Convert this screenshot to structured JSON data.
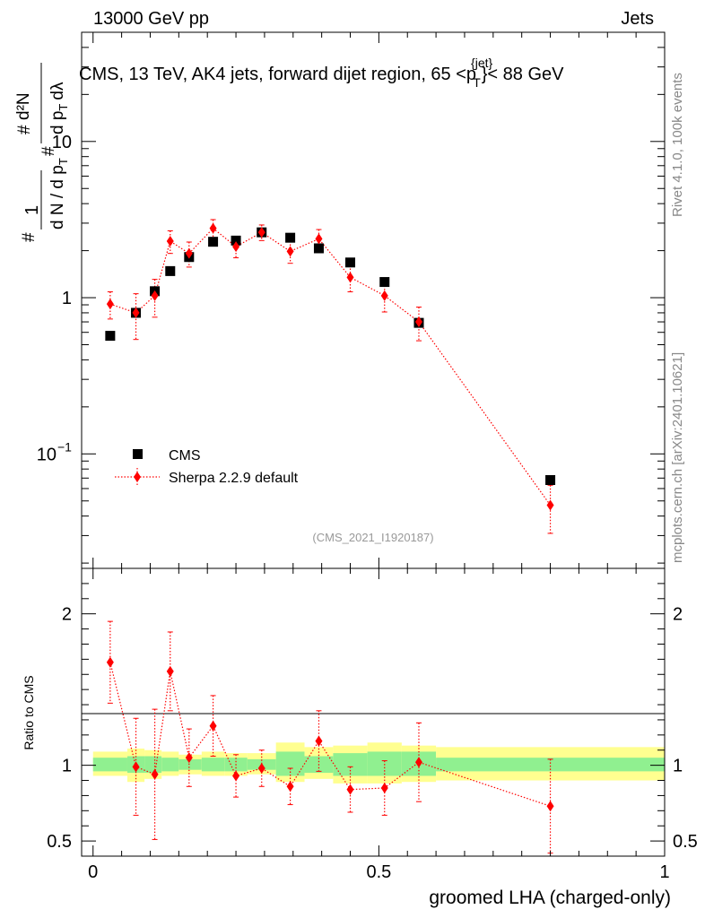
{
  "header": {
    "left": "13000 GeV pp",
    "right": "Jets"
  },
  "side_labels": {
    "rivet": "Rivet 4.1.0,  100k events",
    "mcplots": "mcplots.cern.ch [arXiv:2401.10621]"
  },
  "chart_data": {
    "type": "scatter",
    "title_parts": {
      "prefix": "CMS, 13 TeV, AK4 jets, forward dijet region, 65 <p",
      "sup": "{jet}",
      "sub": "T",
      "suffix": "}< 88 GeV"
    },
    "analysis_id": "(CMS_2021_I1920187)",
    "xlabel": "groomed LHA (charged-only)",
    "xlim": [
      -0.02,
      1.0
    ],
    "ylabel_main": {
      "hash": "#",
      "one": "1",
      "den": "d N / d p",
      "den_sub": "T",
      "num_hash": "#",
      "num_d2N": "d²N",
      "num_den": "d p",
      "num_sub": "T",
      "num_dlambda": "dλ"
    },
    "ylabel_ratio": "Ratio to CMS",
    "main_yscale": "log",
    "main_ylim": [
      0.0185,
      50
    ],
    "ratio_ylim": [
      0.4,
      2.3
    ],
    "x_ticks": [
      {
        "value": 0,
        "label": "0"
      },
      {
        "value": 0.5,
        "label": "0.5"
      },
      {
        "value": 1,
        "label": "1"
      }
    ],
    "main_y_ticks": [
      {
        "value": 10,
        "label": "10",
        "base": "",
        "exp": ""
      },
      {
        "value": 1,
        "label": "1",
        "base": "",
        "exp": ""
      },
      {
        "value": 0.1,
        "label": "",
        "base": "10",
        "exp": "−1"
      }
    ],
    "ratio_y_ticks": [
      {
        "value": 2,
        "label": "2"
      },
      {
        "value": 1,
        "label": "1"
      },
      {
        "value": 0.5,
        "label": "0.5"
      }
    ],
    "legend": {
      "position": "lower-left",
      "entries": [
        {
          "name": "CMS",
          "marker": "square",
          "color": "#000000"
        },
        {
          "name": "Sherpa 2.2.9 default",
          "marker": "diamond",
          "color": "#ff0000"
        }
      ]
    },
    "colors": {
      "data": "#000000",
      "mc": "#ff0000",
      "band_stat": "#90f090",
      "band_total": "#ffff90",
      "side_text": "#888888",
      "analysis_id": "#999999"
    },
    "series": [
      {
        "name": "CMS",
        "x": [
          0.03,
          0.075,
          0.108,
          0.135,
          0.168,
          0.21,
          0.25,
          0.295,
          0.345,
          0.395,
          0.45,
          0.51,
          0.57,
          0.8
        ],
        "y": [
          0.57,
          0.8,
          1.1,
          1.48,
          1.82,
          2.28,
          2.32,
          2.62,
          2.42,
          2.07,
          1.68,
          1.26,
          0.69,
          0.068
        ],
        "band_edges": [
          0.0,
          0.06,
          0.09,
          0.12,
          0.15,
          0.19,
          0.23,
          0.27,
          0.32,
          0.37,
          0.42,
          0.48,
          0.54,
          0.6,
          1.0
        ],
        "band_stat": [
          [
            0.96,
            1.05
          ],
          [
            0.95,
            1.06
          ],
          [
            0.95,
            1.06
          ],
          [
            0.96,
            1.05
          ],
          [
            0.97,
            1.04
          ],
          [
            0.96,
            1.05
          ],
          [
            0.96,
            1.05
          ],
          [
            0.97,
            1.04
          ],
          [
            0.93,
            1.09
          ],
          [
            0.95,
            1.06
          ],
          [
            0.93,
            1.08
          ],
          [
            0.93,
            1.09
          ],
          [
            0.93,
            1.09
          ],
          [
            0.96,
            1.05
          ]
        ],
        "band_total": [
          [
            0.93,
            1.09
          ],
          [
            0.89,
            1.11
          ],
          [
            0.91,
            1.1
          ],
          [
            0.93,
            1.09
          ],
          [
            0.94,
            1.07
          ],
          [
            0.93,
            1.09
          ],
          [
            0.93,
            1.08
          ],
          [
            0.94,
            1.08
          ],
          [
            0.89,
            1.15
          ],
          [
            0.91,
            1.12
          ],
          [
            0.88,
            1.13
          ],
          [
            0.88,
            1.15
          ],
          [
            0.89,
            1.13
          ],
          [
            0.9,
            1.12
          ]
        ]
      },
      {
        "name": "Sherpa 2.2.9 default",
        "x": [
          0.03,
          0.075,
          0.108,
          0.135,
          0.168,
          0.21,
          0.25,
          0.295,
          0.345,
          0.395,
          0.45,
          0.51,
          0.57,
          0.8
        ],
        "y": [
          0.91,
          0.8,
          1.03,
          2.3,
          1.92,
          2.78,
          2.12,
          2.62,
          1.98,
          2.38,
          1.35,
          1.03,
          0.7,
          0.047
        ],
        "yerr": [
          0.18,
          0.26,
          0.28,
          0.38,
          0.35,
          0.38,
          0.32,
          0.3,
          0.32,
          0.35,
          0.26,
          0.22,
          0.17,
          0.016
        ],
        "ratio": [
          1.68,
          0.99,
          0.94,
          1.62,
          1.05,
          1.26,
          0.93,
          0.98,
          0.86,
          1.16,
          0.84,
          0.85,
          1.02,
          0.73
        ],
        "ratio_err": [
          0.27,
          0.32,
          0.43,
          0.26,
          0.19,
          0.2,
          0.14,
          0.12,
          0.12,
          0.2,
          0.15,
          0.18,
          0.26,
          0.31
        ]
      }
    ]
  }
}
